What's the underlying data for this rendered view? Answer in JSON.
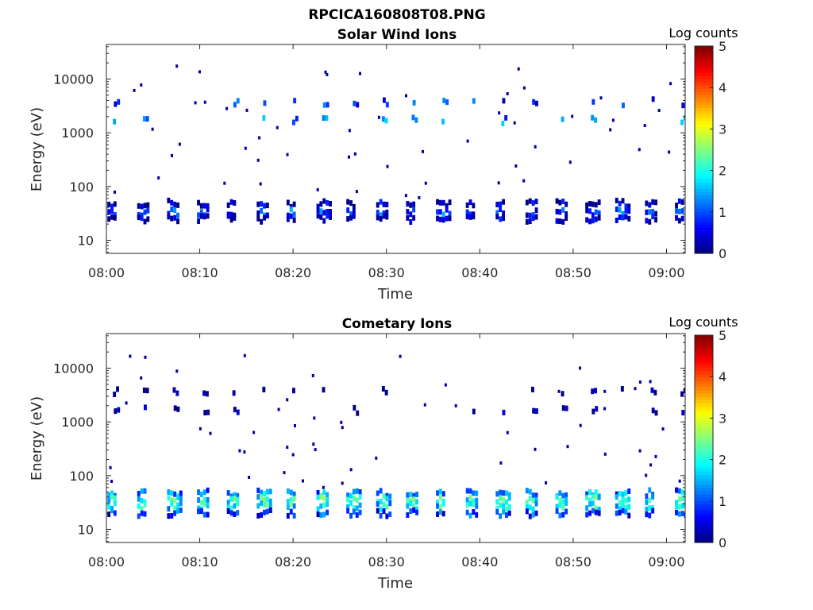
{
  "figure": {
    "title": "RPCICA160808T08.PNG"
  },
  "chart_data": [
    {
      "type": "heatmap",
      "title": "Solar Wind Ions",
      "xlabel": "Time",
      "ylabel": "Energy (eV)",
      "x_range_minutes_after_0800": [
        0,
        62
      ],
      "ylim_eV": [
        5.7,
        44000
      ],
      "y_scale": "log",
      "x_tick_labels": [
        "08:00",
        "08:10",
        "08:20",
        "08:30",
        "08:40",
        "08:50",
        "09:00"
      ],
      "y_tick_labels": [
        "10",
        "100",
        "1000",
        "10000"
      ],
      "y_tick_values": [
        10,
        100,
        1000,
        10000
      ],
      "colorbar": {
        "title": "Log counts",
        "range": [
          0,
          5
        ],
        "ticks": [
          "0",
          "1",
          "2",
          "3",
          "4",
          "5"
        ],
        "colormap": "jet"
      },
      "grid": false,
      "cycle_period_minutes": 3.2,
      "bands": [
        {
          "energy_eV": 1700,
          "log_counts": 1.6
        },
        {
          "energy_eV": 3700,
          "log_counts": 1.2
        },
        {
          "energy_eV": 48,
          "log_counts": 0.3
        },
        {
          "energy_eV": 33,
          "log_counts": 1.0
        },
        {
          "energy_eV": 25,
          "log_counts": 0.4
        }
      ]
    },
    {
      "type": "heatmap",
      "title": "Cometary Ions",
      "xlabel": "Time",
      "ylabel": "Energy (eV)",
      "x_range_minutes_after_0800": [
        0,
        62
      ],
      "ylim_eV": [
        5.7,
        44000
      ],
      "y_scale": "log",
      "x_tick_labels": [
        "08:00",
        "08:10",
        "08:20",
        "08:30",
        "08:40",
        "08:50",
        "09:00"
      ],
      "y_tick_labels": [
        "10",
        "100",
        "1000",
        "10000"
      ],
      "y_tick_values": [
        10,
        100,
        1000,
        10000
      ],
      "colorbar": {
        "title": "Log counts",
        "range": [
          0,
          5
        ],
        "ticks": [
          "0",
          "1",
          "2",
          "3",
          "4",
          "5"
        ],
        "colormap": "jet"
      },
      "grid": false,
      "cycle_period_minutes": 3.2,
      "bands": [
        {
          "energy_eV": 3700,
          "log_counts": 0.3
        },
        {
          "energy_eV": 1650,
          "log_counts": 0.4
        },
        {
          "energy_eV": 47,
          "log_counts": 1.4
        },
        {
          "energy_eV": 36,
          "log_counts": 2.2
        },
        {
          "energy_eV": 27,
          "log_counts": 2.0
        },
        {
          "energy_eV": 20,
          "log_counts": 1.0
        }
      ]
    }
  ]
}
